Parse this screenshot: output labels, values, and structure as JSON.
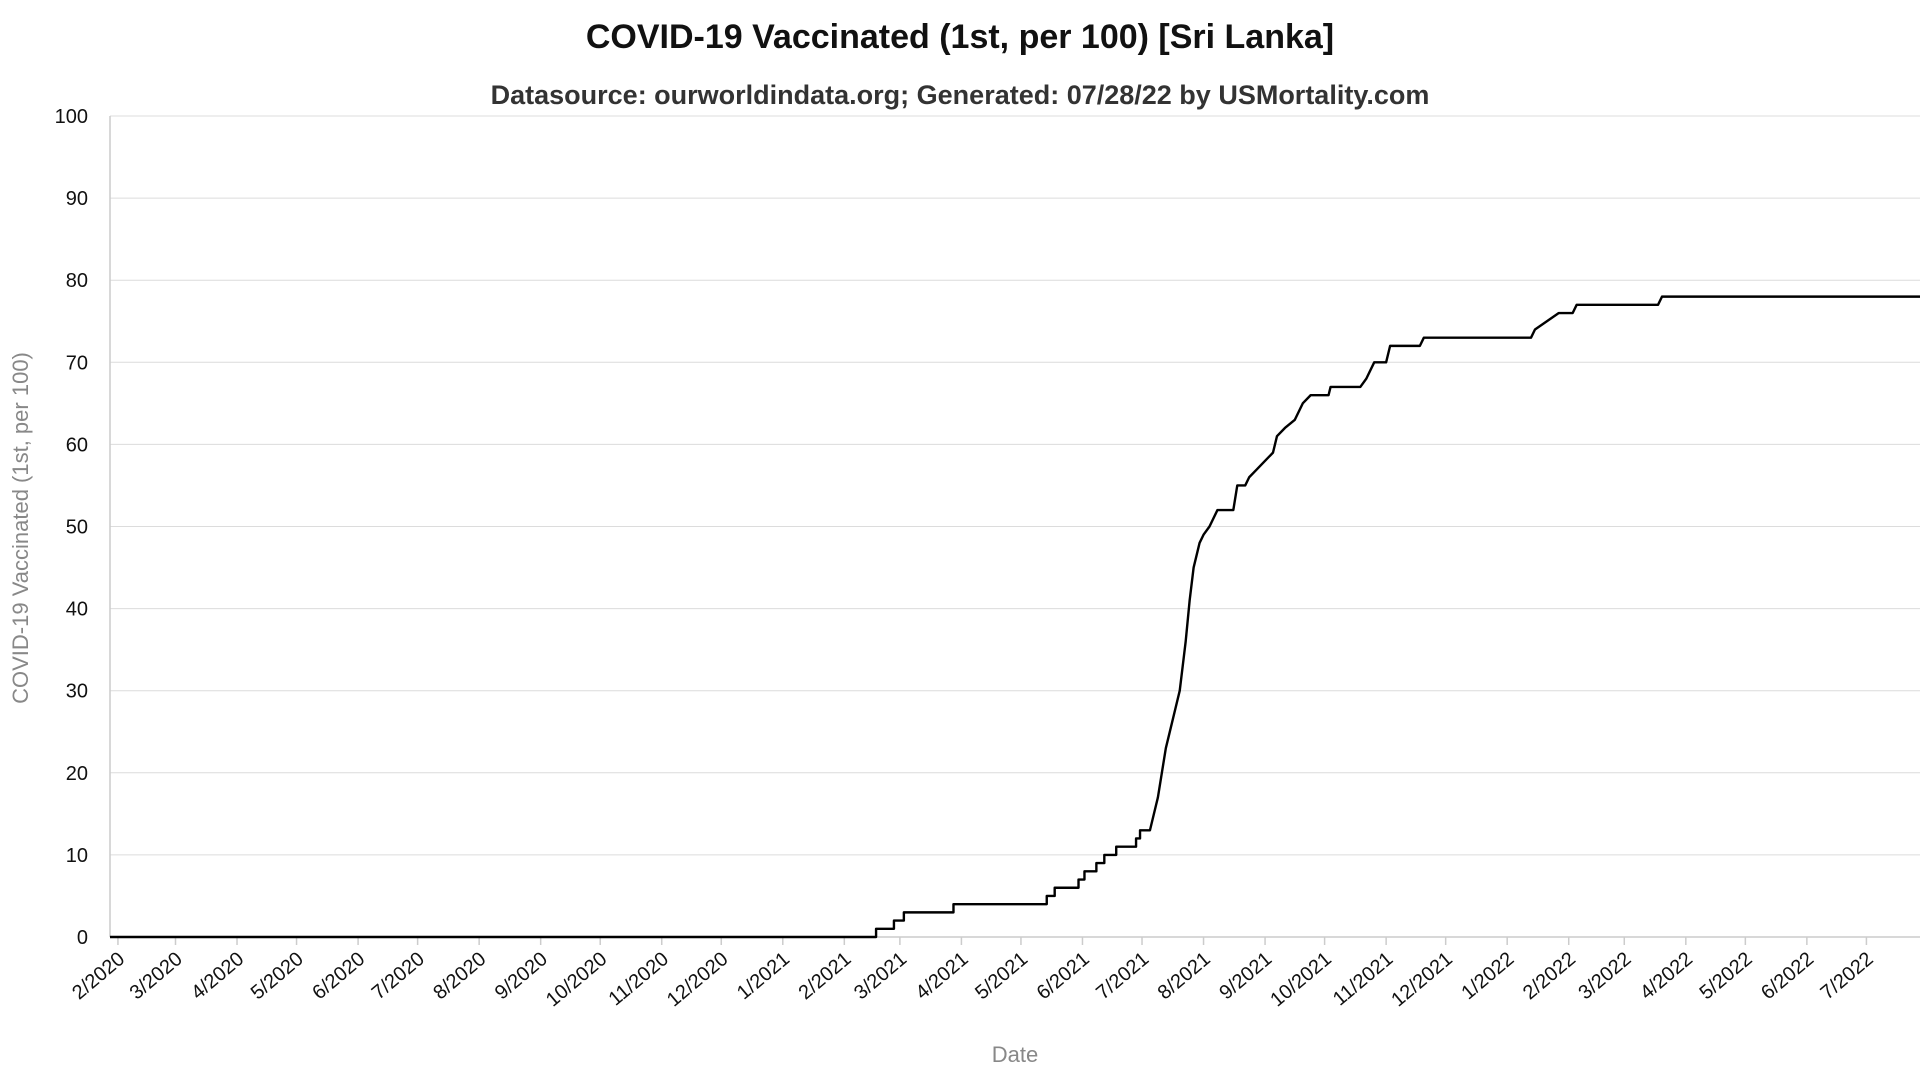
{
  "chart_data": {
    "type": "line",
    "title": "COVID-19 Vaccinated (1st, per 100) [Sri Lanka]",
    "subtitle": "Datasource: ourworldindata.org; Generated: 07/28/22 by USMortality.com",
    "xlabel": "Date",
    "ylabel": "COVID-19 Vaccinated (1st, per 100)",
    "ylim": [
      0,
      100
    ],
    "yticks": [
      0,
      10,
      20,
      30,
      40,
      50,
      60,
      70,
      80,
      90,
      100
    ],
    "xlim": [
      "2020-01-28",
      "2022-07-28"
    ],
    "xticks": [
      {
        "date": "2020-02-01",
        "label": "2/2020"
      },
      {
        "date": "2020-03-01",
        "label": "3/2020"
      },
      {
        "date": "2020-04-01",
        "label": "4/2020"
      },
      {
        "date": "2020-05-01",
        "label": "5/2020"
      },
      {
        "date": "2020-06-01",
        "label": "6/2020"
      },
      {
        "date": "2020-07-01",
        "label": "7/2020"
      },
      {
        "date": "2020-08-01",
        "label": "8/2020"
      },
      {
        "date": "2020-09-01",
        "label": "9/2020"
      },
      {
        "date": "2020-10-01",
        "label": "10/2020"
      },
      {
        "date": "2020-11-01",
        "label": "11/2020"
      },
      {
        "date": "2020-12-01",
        "label": "12/2020"
      },
      {
        "date": "2021-01-01",
        "label": "1/2021"
      },
      {
        "date": "2021-02-01",
        "label": "2/2021"
      },
      {
        "date": "2021-03-01",
        "label": "3/2021"
      },
      {
        "date": "2021-04-01",
        "label": "4/2021"
      },
      {
        "date": "2021-05-01",
        "label": "5/2021"
      },
      {
        "date": "2021-06-01",
        "label": "6/2021"
      },
      {
        "date": "2021-07-01",
        "label": "7/2021"
      },
      {
        "date": "2021-08-01",
        "label": "8/2021"
      },
      {
        "date": "2021-09-01",
        "label": "9/2021"
      },
      {
        "date": "2021-10-01",
        "label": "10/2021"
      },
      {
        "date": "2021-11-01",
        "label": "11/2021"
      },
      {
        "date": "2021-12-01",
        "label": "12/2021"
      },
      {
        "date": "2022-01-01",
        "label": "1/2022"
      },
      {
        "date": "2022-02-01",
        "label": "2/2022"
      },
      {
        "date": "2022-03-01",
        "label": "3/2022"
      },
      {
        "date": "2022-04-01",
        "label": "4/2022"
      },
      {
        "date": "2022-05-01",
        "label": "5/2022"
      },
      {
        "date": "2022-06-01",
        "label": "6/2022"
      },
      {
        "date": "2022-07-01",
        "label": "7/2022"
      }
    ],
    "grid": true,
    "legend": "none",
    "series": [
      {
        "color": "#000000",
        "step": true,
        "points": [
          [
            "2020-01-28",
            0
          ],
          [
            "2021-02-17",
            0
          ],
          [
            "2021-02-17",
            1
          ],
          [
            "2021-02-26",
            1
          ],
          [
            "2021-02-26",
            2
          ],
          [
            "2021-03-03",
            2
          ],
          [
            "2021-03-03",
            3
          ],
          [
            "2021-03-28",
            3
          ],
          [
            "2021-03-28",
            4
          ],
          [
            "2021-05-14",
            4
          ],
          [
            "2021-05-14",
            5
          ],
          [
            "2021-05-18",
            5
          ],
          [
            "2021-05-18",
            6
          ],
          [
            "2021-05-30",
            6
          ],
          [
            "2021-05-30",
            7
          ],
          [
            "2021-06-02",
            7
          ],
          [
            "2021-06-02",
            8
          ],
          [
            "2021-06-08",
            8
          ],
          [
            "2021-06-08",
            9
          ],
          [
            "2021-06-12",
            9
          ],
          [
            "2021-06-12",
            10
          ],
          [
            "2021-06-18",
            10
          ],
          [
            "2021-06-18",
            11
          ],
          [
            "2021-06-28",
            11
          ],
          [
            "2021-06-28",
            12
          ],
          [
            "2021-06-30",
            12
          ],
          [
            "2021-06-30",
            13
          ],
          [
            "2021-07-05",
            13
          ],
          [
            "2021-07-08",
            16
          ],
          [
            "2021-07-09",
            17
          ],
          [
            "2021-07-11",
            20
          ],
          [
            "2021-07-13",
            23
          ],
          [
            "2021-07-16",
            26
          ],
          [
            "2021-07-18",
            28
          ],
          [
            "2021-07-20",
            30
          ],
          [
            "2021-07-22",
            34
          ],
          [
            "2021-07-23",
            36
          ],
          [
            "2021-07-25",
            41
          ],
          [
            "2021-07-27",
            45
          ],
          [
            "2021-07-30",
            48
          ],
          [
            "2021-08-01",
            49
          ],
          [
            "2021-08-04",
            50
          ],
          [
            "2021-08-08",
            52
          ],
          [
            "2021-08-16",
            52
          ],
          [
            "2021-08-18",
            55
          ],
          [
            "2021-08-22",
            55
          ],
          [
            "2021-08-24",
            56
          ],
          [
            "2021-08-28",
            57
          ],
          [
            "2021-09-01",
            58
          ],
          [
            "2021-09-05",
            59
          ],
          [
            "2021-09-07",
            61
          ],
          [
            "2021-09-11",
            62
          ],
          [
            "2021-09-16",
            63
          ],
          [
            "2021-09-20",
            65
          ],
          [
            "2021-09-24",
            66
          ],
          [
            "2021-10-03",
            66
          ],
          [
            "2021-10-04",
            67
          ],
          [
            "2021-10-19",
            67
          ],
          [
            "2021-10-22",
            68
          ],
          [
            "2021-10-26",
            70
          ],
          [
            "2021-11-01",
            70
          ],
          [
            "2021-11-03",
            72
          ],
          [
            "2021-11-18",
            72
          ],
          [
            "2021-11-20",
            73
          ],
          [
            "2022-01-13",
            73
          ],
          [
            "2022-01-15",
            74
          ],
          [
            "2022-01-21",
            75
          ],
          [
            "2022-01-27",
            76
          ],
          [
            "2022-02-03",
            76
          ],
          [
            "2022-02-05",
            77
          ],
          [
            "2022-03-18",
            77
          ],
          [
            "2022-03-20",
            78
          ],
          [
            "2022-07-28",
            78
          ]
        ]
      }
    ]
  }
}
